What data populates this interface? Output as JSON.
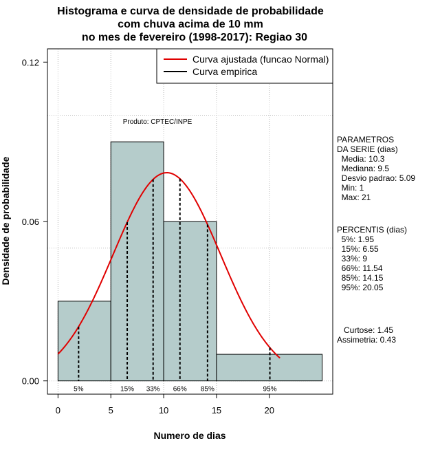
{
  "chart_data": {
    "type": "bar",
    "title_lines": [
      "Histograma e curva de densidade de probabilidade",
      "com chuva acima de 10 mm",
      "no mes de fevereiro (1998-2017): Regiao 30"
    ],
    "xlabel": "Numero de dias",
    "ylabel": "Densidade de probabilidade",
    "xlim": [
      -1,
      26
    ],
    "ylim": [
      -0.005,
      0.125
    ],
    "x_ticks": [
      0,
      5,
      10,
      15,
      20
    ],
    "x_tick_labels": [
      "0",
      "5",
      "10",
      "15",
      "20"
    ],
    "y_ticks": [
      0.0,
      0.06,
      0.12
    ],
    "y_tick_labels": [
      "0.00",
      "0.06",
      "0.12"
    ],
    "grid": true,
    "grid_x": [
      0,
      5,
      10,
      15,
      20
    ],
    "grid_y": [
      0.0,
      0.05,
      0.1
    ],
    "bins": [
      {
        "x0": 0,
        "x1": 5,
        "density": 0.03
      },
      {
        "x0": 5,
        "x1": 10,
        "density": 0.09
      },
      {
        "x0": 10,
        "x1": 15,
        "density": 0.06
      },
      {
        "x0": 15,
        "x1": 25,
        "density": 0.01
      }
    ],
    "bar_color": "#b5cccb",
    "normal_curve": {
      "mean": 10.3,
      "sd": 5.09,
      "x_range": [
        0,
        21
      ],
      "color": "#e00000"
    },
    "percentiles": [
      {
        "label": "5%",
        "x": 1.95
      },
      {
        "label": "15%",
        "x": 6.55
      },
      {
        "label": "33%",
        "x": 9
      },
      {
        "label": "66%",
        "x": 11.54
      },
      {
        "label": "85%",
        "x": 14.15
      },
      {
        "label": "95%",
        "x": 20.05
      }
    ],
    "legend": {
      "position": "top-right",
      "entries": [
        {
          "label": "Curva ajustada (funcao Normal)",
          "color": "#e00000"
        },
        {
          "label": "Curva empirica",
          "color": "#000000"
        }
      ]
    },
    "credit": "Produto: CPTEC/INPE",
    "side_panel": {
      "params_lines": [
        "PARAMETROS",
        "DA SERIE (dias)",
        "  Media: 10.3",
        "  Mediana: 9.5",
        "  Desvio padrao: 5.09",
        "  Min: 1",
        "  Max: 21"
      ],
      "percentis_lines": [
        "PERCENTIS (dias)",
        "  5%: 1.95",
        "  15%: 6.55",
        "  33%: 9",
        "  66%: 11.54",
        "  85%: 14.15",
        "  95%: 20.05"
      ],
      "stats_lines": [
        "   Curtose: 1.45",
        "Assimetria: 0.43"
      ]
    }
  }
}
